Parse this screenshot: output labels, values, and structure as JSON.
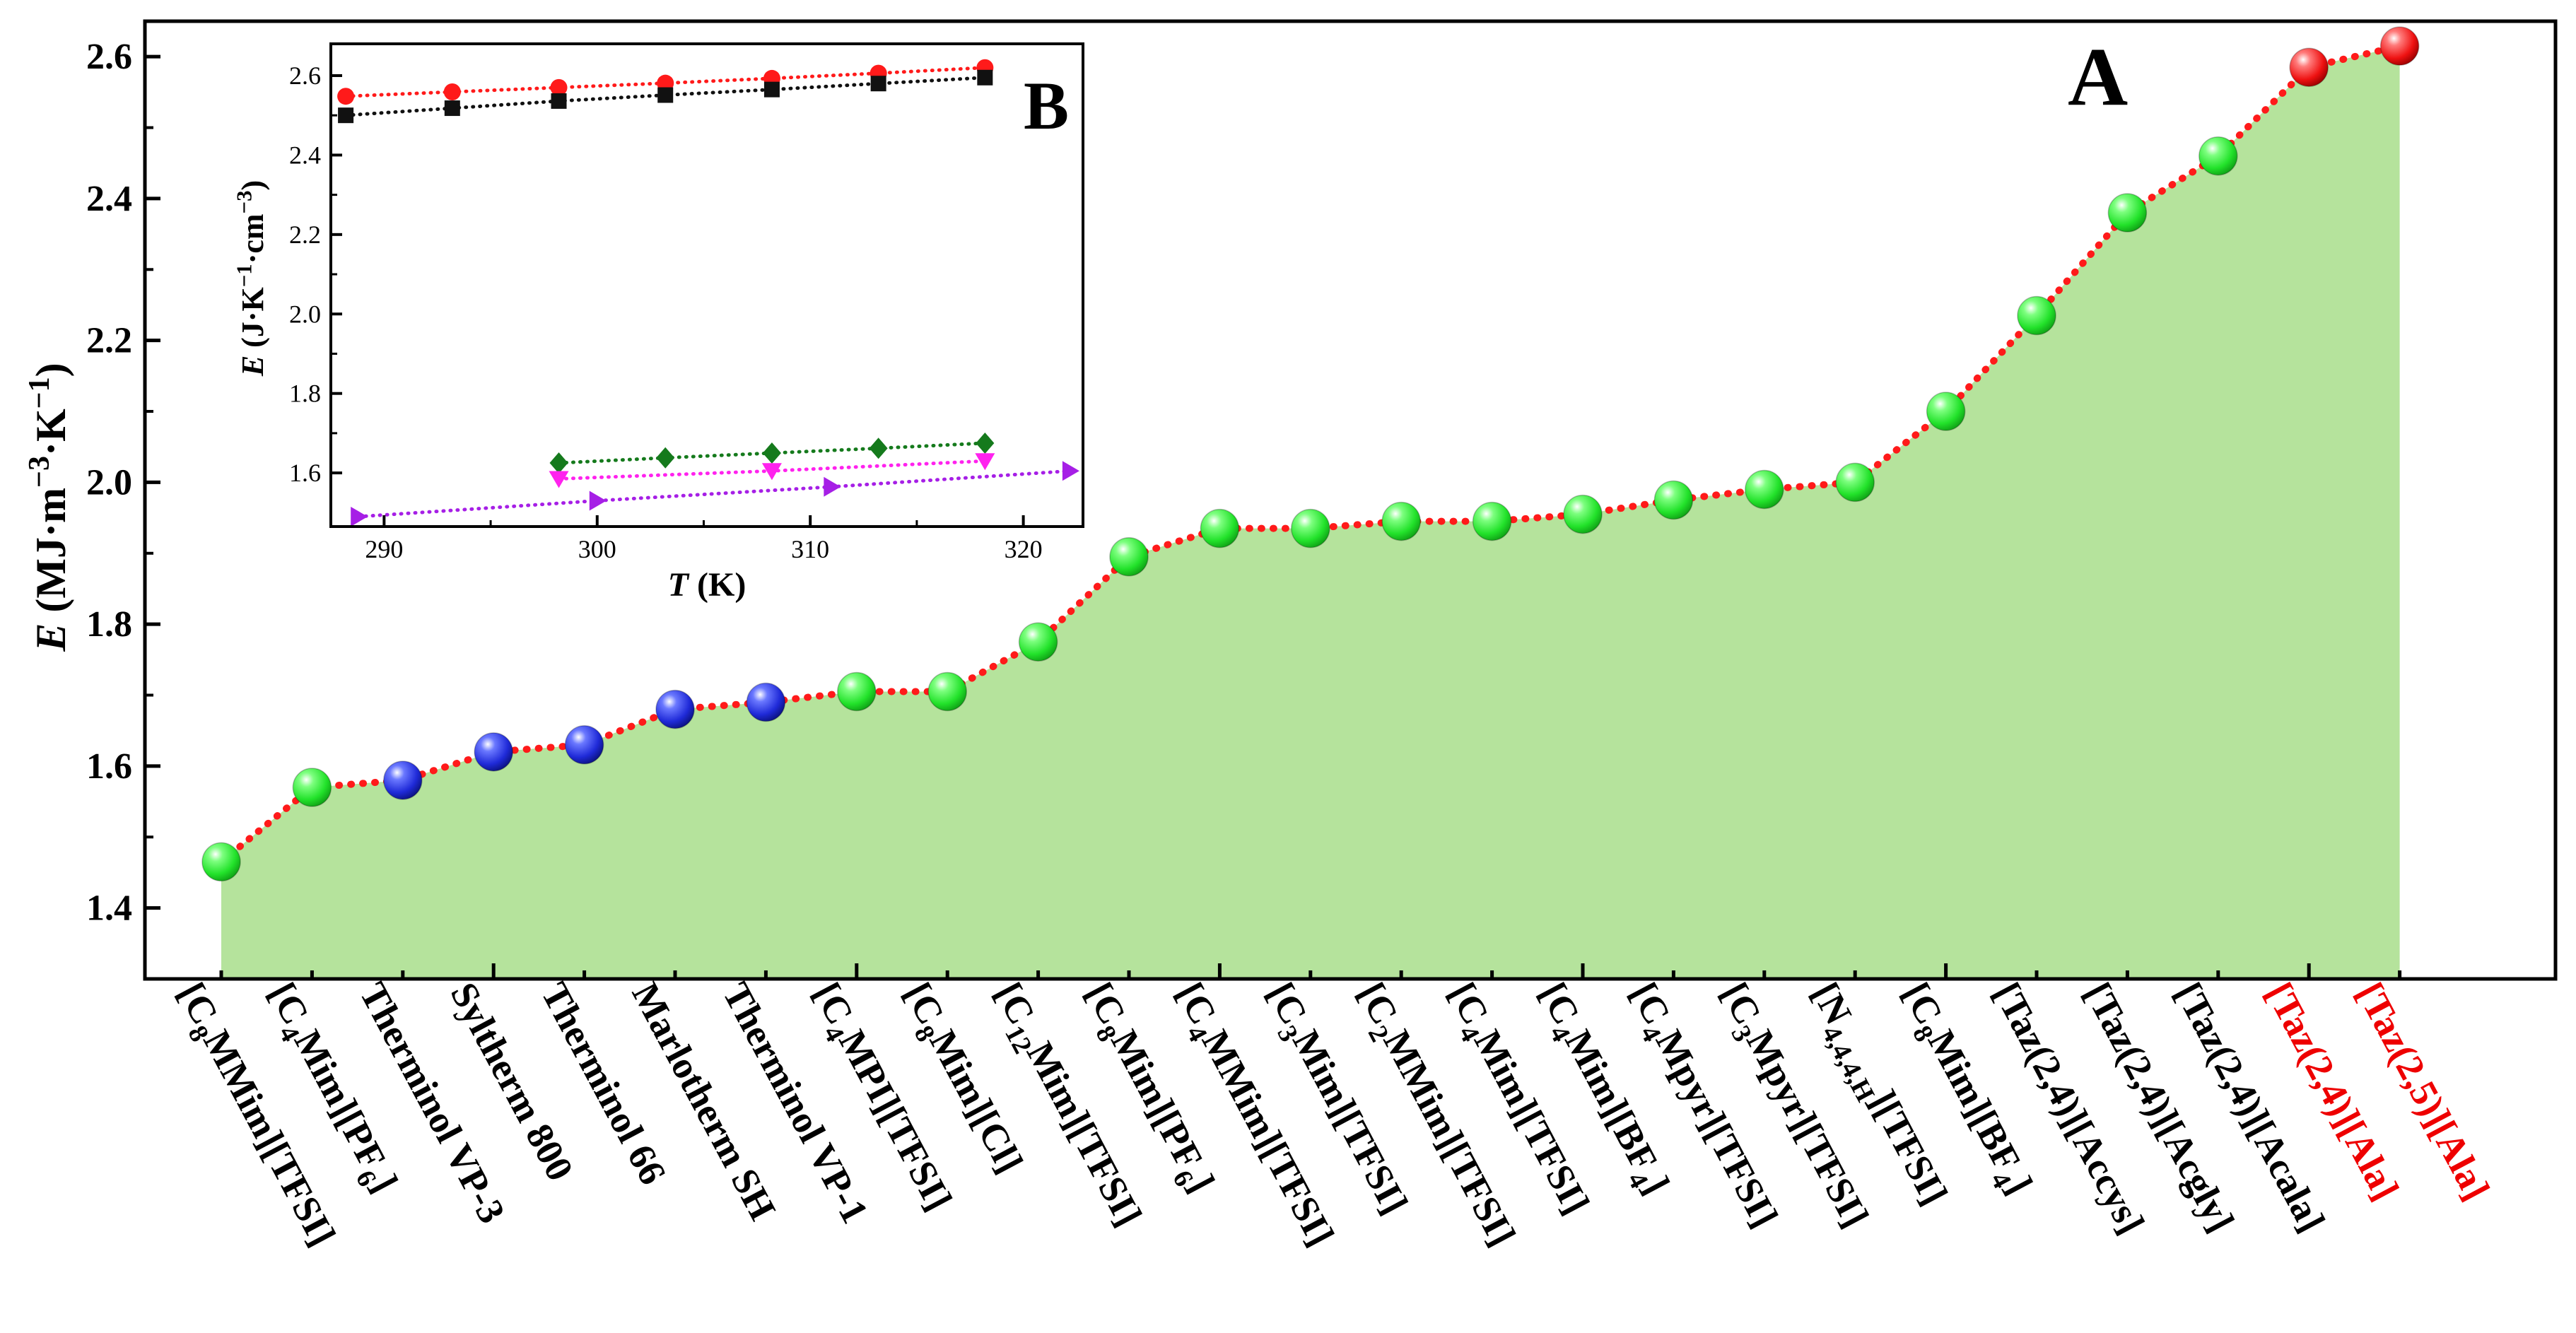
{
  "colors": {
    "fill": "#b5e39c",
    "line": "#ff1a1a",
    "green": "#22e22a",
    "blue": "#1f2ad8",
    "red": "#ee1111",
    "inset_red": "#ff1a1a",
    "inset_black": "#111111",
    "inset_darkgreen": "#157a1c",
    "inset_magenta": "#ff22ee",
    "inset_purple": "#a61fe6",
    "label_red": "#ee0000"
  },
  "chart_data": [
    {
      "type": "area",
      "panel_label": "A",
      "ylabel": {
        "var": "E",
        "unit": "(MJ·m⁻³·K⁻¹)"
      },
      "ylim": [
        1.3,
        2.65
      ],
      "yticks": [
        "1.4",
        "1.6",
        "1.8",
        "2.0",
        "2.2",
        "2.4",
        "2.6"
      ],
      "grid": false,
      "categories": [
        {
          "label": "[C8MMim][TFSI]",
          "value": 1.465,
          "marker": "green",
          "highlight": false
        },
        {
          "label": "[C4Mim][PF6]",
          "value": 1.57,
          "marker": "green",
          "highlight": false
        },
        {
          "label": "Therminol VP-3",
          "value": 1.58,
          "marker": "blue",
          "highlight": false
        },
        {
          "label": "Syltherm 800",
          "value": 1.62,
          "marker": "blue",
          "highlight": false
        },
        {
          "label": "Therminol 66",
          "value": 1.63,
          "marker": "blue",
          "highlight": false
        },
        {
          "label": "Marlotherm SH",
          "value": 1.68,
          "marker": "blue",
          "highlight": false
        },
        {
          "label": "Therminol VP-1",
          "value": 1.69,
          "marker": "blue",
          "highlight": false
        },
        {
          "label": "[C4MPI][TFSI]",
          "value": 1.705,
          "marker": "green",
          "highlight": false
        },
        {
          "label": "[C8Mim][Cl]",
          "value": 1.705,
          "marker": "green",
          "highlight": false
        },
        {
          "label": "[C12Mim][TFSI]",
          "value": 1.775,
          "marker": "green",
          "highlight": false
        },
        {
          "label": "[C8Mim][PF6]",
          "value": 1.895,
          "marker": "green",
          "highlight": false
        },
        {
          "label": "[C4MMim][TFSI]",
          "value": 1.935,
          "marker": "green",
          "highlight": false
        },
        {
          "label": "[C3Mim][TFSI]",
          "value": 1.935,
          "marker": "green",
          "highlight": false
        },
        {
          "label": "[C2MMim][TFSI]",
          "value": 1.945,
          "marker": "green",
          "highlight": false
        },
        {
          "label": "[C4Mim][TFSI]",
          "value": 1.945,
          "marker": "green",
          "highlight": false
        },
        {
          "label": "[C4Mim][BF4]",
          "value": 1.955,
          "marker": "green",
          "highlight": false
        },
        {
          "label": "[C4Mpyr][TFSI]",
          "value": 1.975,
          "marker": "green",
          "highlight": false
        },
        {
          "label": "[C3Mpyr][TFSI]",
          "value": 1.99,
          "marker": "green",
          "highlight": false
        },
        {
          "label": "[N4,4,4,H][TFSI]",
          "value": 2.0,
          "marker": "green",
          "highlight": false
        },
        {
          "label": "[C8Mim][BF4]",
          "value": 2.1,
          "marker": "green",
          "highlight": false
        },
        {
          "label": "[Taz(2,4)][Accys]",
          "value": 2.235,
          "marker": "green",
          "highlight": false
        },
        {
          "label": "[Taz(2,4)][Acgly]",
          "value": 2.38,
          "marker": "green",
          "highlight": false
        },
        {
          "label": "[Taz(2,4)][Acala]",
          "value": 2.46,
          "marker": "green",
          "highlight": false
        },
        {
          "label": "[Taz(2,4)][Ala]",
          "value": 2.585,
          "marker": "red",
          "highlight": true
        },
        {
          "label": "[Taz(2,5)][Ala]",
          "value": 2.615,
          "marker": "red",
          "highlight": true
        }
      ]
    },
    {
      "type": "scatter",
      "panel_label": "B",
      "xlabel": {
        "var": "T",
        "unit": "(K)"
      },
      "ylabel": {
        "var": "E",
        "unit": "(J·K⁻¹·cm⁻³)"
      },
      "xlim": [
        287.5,
        322.8
      ],
      "ylim": [
        1.465,
        2.68
      ],
      "xticks": [
        "290",
        "300",
        "310",
        "320"
      ],
      "yticks": [
        "1.6",
        "1.8",
        "2.0",
        "2.2",
        "2.4",
        "2.6"
      ],
      "grid": false,
      "series": [
        {
          "marker": "circle",
          "color": "inset_red",
          "x": [
            288.2,
            293.2,
            298.2,
            303.2,
            308.2,
            313.2,
            318.2
          ],
          "y": [
            2.548,
            2.559,
            2.57,
            2.581,
            2.593,
            2.606,
            2.62
          ]
        },
        {
          "marker": "square",
          "color": "inset_black",
          "x": [
            288.2,
            293.2,
            298.2,
            303.2,
            308.2,
            313.2,
            318.2
          ],
          "y": [
            2.5,
            2.518,
            2.536,
            2.551,
            2.565,
            2.58,
            2.595
          ]
        },
        {
          "marker": "diamond",
          "color": "inset_darkgreen",
          "x": [
            298.2,
            303.2,
            308.2,
            313.2,
            318.2
          ],
          "y": [
            1.625,
            1.638,
            1.65,
            1.662,
            1.675
          ]
        },
        {
          "marker": "triangle-down",
          "color": "inset_magenta",
          "x": [
            298.2,
            308.2,
            318.2
          ],
          "y": [
            1.585,
            1.605,
            1.63
          ]
        },
        {
          "marker": "triangle-right",
          "color": "inset_purple",
          "x": [
            288.8,
            300.0,
            311.0,
            322.2
          ],
          "y": [
            1.49,
            1.53,
            1.565,
            1.605
          ]
        }
      ]
    }
  ]
}
